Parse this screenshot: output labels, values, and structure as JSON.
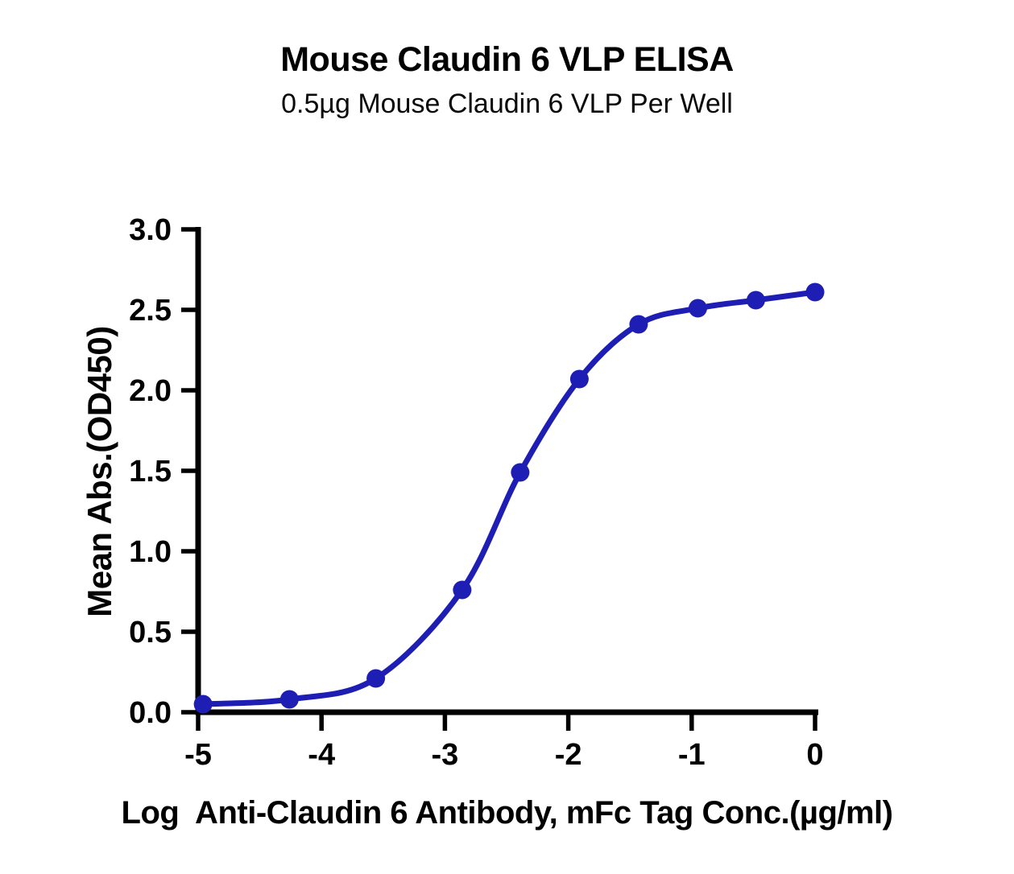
{
  "chart_data": {
    "type": "line",
    "title": "Mouse Claudin 6 VLP ELISA",
    "subtitle": "0.5µg Mouse Claudin 6 VLP Per Well",
    "xlabel": "Log  Anti-Claudin 6 Antibody, mFc Tag Conc.(µg/ml)",
    "ylabel": "Mean Abs.(OD450)",
    "xlim": [
      -5,
      0
    ],
    "ylim": [
      0,
      3
    ],
    "x_ticks": [
      -5,
      -4,
      -3,
      -2,
      -1,
      0
    ],
    "x_tick_labels": [
      "-5",
      "-4",
      "-3",
      "-2",
      "-1",
      "0"
    ],
    "y_ticks": [
      0.0,
      0.5,
      1.0,
      1.5,
      2.0,
      2.5,
      3.0
    ],
    "y_tick_labels": [
      "0.0",
      "0.5",
      "1.0",
      "1.5",
      "2.0",
      "2.5",
      "3.0"
    ],
    "grid": false,
    "legend": null,
    "background_color": "#ffffff",
    "axis_color": "#000000",
    "series": [
      {
        "name": "Anti-Claudin 6 Antibody, mFc Tag",
        "color": "#1e1eb4",
        "marker": "circle",
        "line": "smooth-sigmoid",
        "x": [
          -4.96,
          -4.26,
          -3.56,
          -2.86,
          -2.39,
          -1.91,
          -1.43,
          -0.95,
          -0.48,
          0.0
        ],
        "y": [
          0.05,
          0.08,
          0.21,
          0.76,
          1.49,
          2.07,
          2.41,
          2.51,
          2.56,
          2.61
        ]
      }
    ]
  }
}
